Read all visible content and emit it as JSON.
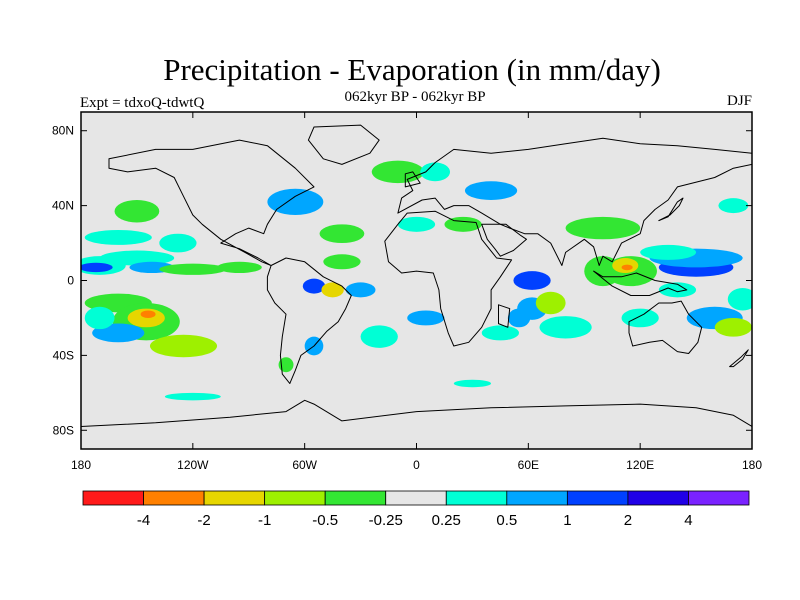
{
  "header": {
    "title": "Precipitation - Evaporation (in mm/day)",
    "subtitle": "062kyr BP - 062kyr BP",
    "left_label": "Expt = tdxoQ-tdwtQ",
    "right_label": "DJF"
  },
  "map": {
    "lon_range": [
      -180,
      180
    ],
    "lat_range": [
      -90,
      90
    ],
    "ocean_fill": "#e6e6e6",
    "lon_ticks": [
      {
        "lon": -180,
        "label": "180"
      },
      {
        "lon": -120,
        "label": "120W"
      },
      {
        "lon": -60,
        "label": "60W"
      },
      {
        "lon": 0,
        "label": "0"
      },
      {
        "lon": 60,
        "label": "60E"
      },
      {
        "lon": 120,
        "label": "120E"
      },
      {
        "lon": 180,
        "label": "180"
      }
    ],
    "lat_ticks": [
      {
        "lat": 80,
        "label": "80N"
      },
      {
        "lat": 40,
        "label": "40N"
      },
      {
        "lat": 0,
        "label": "0"
      },
      {
        "lat": -40,
        "label": "40S"
      },
      {
        "lat": -80,
        "label": "80S"
      }
    ]
  },
  "colorbar": {
    "colors": [
      "#ff1a1a",
      "#ff8000",
      "#e6d600",
      "#9ef000",
      "#33e633",
      "#e6e6e6",
      "#00ffd5",
      "#00a6ff",
      "#0040ff",
      "#2000e6",
      "#7a22ff"
    ],
    "labels": [
      "-4",
      "-2",
      "-1",
      "-0.5",
      "-0.25",
      "0.25",
      "0.5",
      "1",
      "2",
      "4"
    ]
  },
  "blobs": [
    {
      "lon": -170,
      "lat": 8,
      "rx": 14,
      "ry": 5,
      "color": "#00ffd5"
    },
    {
      "lon": -172,
      "lat": 7,
      "rx": 9,
      "ry": 2.5,
      "color": "#0040ff"
    },
    {
      "lon": -150,
      "lat": 12,
      "rx": 20,
      "ry": 4,
      "color": "#00ffd5"
    },
    {
      "lon": -142,
      "lat": 7,
      "rx": 12,
      "ry": 3,
      "color": "#00a6ff"
    },
    {
      "lon": -120,
      "lat": 6,
      "rx": 18,
      "ry": 3,
      "color": "#33e633"
    },
    {
      "lon": -95,
      "lat": 7,
      "rx": 12,
      "ry": 3,
      "color": "#33e633"
    },
    {
      "lon": -160,
      "lat": -12,
      "rx": 18,
      "ry": 5,
      "color": "#33e633"
    },
    {
      "lon": -145,
      "lat": -22,
      "rx": 18,
      "ry": 10,
      "color": "#33e633"
    },
    {
      "lon": -145,
      "lat": -20,
      "rx": 10,
      "ry": 5,
      "color": "#e6d600"
    },
    {
      "lon": -144,
      "lat": -18,
      "rx": 4,
      "ry": 2,
      "color": "#ff8000"
    },
    {
      "lon": -125,
      "lat": -35,
      "rx": 18,
      "ry": 6,
      "color": "#9ef000"
    },
    {
      "lon": -160,
      "lat": -28,
      "rx": 14,
      "ry": 5,
      "color": "#00a6ff"
    },
    {
      "lon": -170,
      "lat": -20,
      "rx": 8,
      "ry": 6,
      "color": "#00ffd5"
    },
    {
      "lon": -150,
      "lat": 37,
      "rx": 12,
      "ry": 6,
      "color": "#33e633"
    },
    {
      "lon": -160,
      "lat": 23,
      "rx": 18,
      "ry": 4,
      "color": "#00ffd5"
    },
    {
      "lon": -128,
      "lat": 20,
      "rx": 10,
      "ry": 5,
      "color": "#00ffd5"
    },
    {
      "lon": -65,
      "lat": 42,
      "rx": 15,
      "ry": 7,
      "color": "#00a6ff"
    },
    {
      "lon": -40,
      "lat": 25,
      "rx": 12,
      "ry": 5,
      "color": "#33e633"
    },
    {
      "lon": -40,
      "lat": 10,
      "rx": 10,
      "ry": 4,
      "color": "#33e633"
    },
    {
      "lon": -30,
      "lat": -5,
      "rx": 8,
      "ry": 4,
      "color": "#00a6ff"
    },
    {
      "lon": -55,
      "lat": -3,
      "rx": 6,
      "ry": 4,
      "color": "#0040ff"
    },
    {
      "lon": -45,
      "lat": -5,
      "rx": 6,
      "ry": 4,
      "color": "#e6d600"
    },
    {
      "lon": -20,
      "lat": -30,
      "rx": 10,
      "ry": 6,
      "color": "#00ffd5"
    },
    {
      "lon": 5,
      "lat": -20,
      "rx": 10,
      "ry": 4,
      "color": "#00a6ff"
    },
    {
      "lon": -10,
      "lat": 58,
      "rx": 14,
      "ry": 6,
      "color": "#33e633"
    },
    {
      "lon": 10,
      "lat": 58,
      "rx": 8,
      "ry": 5,
      "color": "#00ffd5"
    },
    {
      "lon": 40,
      "lat": 48,
      "rx": 14,
      "ry": 5,
      "color": "#00a6ff"
    },
    {
      "lon": 25,
      "lat": 30,
      "rx": 10,
      "ry": 4,
      "color": "#33e633"
    },
    {
      "lon": 0,
      "lat": 30,
      "rx": 10,
      "ry": 4,
      "color": "#00ffd5"
    },
    {
      "lon": 62,
      "lat": 0,
      "rx": 10,
      "ry": 5,
      "color": "#0040ff"
    },
    {
      "lon": 62,
      "lat": -15,
      "rx": 8,
      "ry": 6,
      "color": "#00a6ff"
    },
    {
      "lon": 72,
      "lat": -12,
      "rx": 8,
      "ry": 6,
      "color": "#9ef000"
    },
    {
      "lon": 55,
      "lat": -20,
      "rx": 6,
      "ry": 5,
      "color": "#00a6ff"
    },
    {
      "lon": 45,
      "lat": -28,
      "rx": 10,
      "ry": 4,
      "color": "#00ffd5"
    },
    {
      "lon": 80,
      "lat": -25,
      "rx": 14,
      "ry": 6,
      "color": "#00ffd5"
    },
    {
      "lon": 100,
      "lat": 5,
      "rx": 10,
      "ry": 8,
      "color": "#33e633"
    },
    {
      "lon": 115,
      "lat": 5,
      "rx": 14,
      "ry": 8,
      "color": "#33e633"
    },
    {
      "lon": 112,
      "lat": 8,
      "rx": 7,
      "ry": 4,
      "color": "#e6d600"
    },
    {
      "lon": 113,
      "lat": 7,
      "rx": 3,
      "ry": 1.5,
      "color": "#ff8000"
    },
    {
      "lon": 150,
      "lat": 7,
      "rx": 20,
      "ry": 5,
      "color": "#0040ff"
    },
    {
      "lon": 150,
      "lat": 12,
      "rx": 25,
      "ry": 5,
      "color": "#00a6ff"
    },
    {
      "lon": 135,
      "lat": 15,
      "rx": 15,
      "ry": 4,
      "color": "#00ffd5"
    },
    {
      "lon": 160,
      "lat": -20,
      "rx": 15,
      "ry": 6,
      "color": "#00a6ff"
    },
    {
      "lon": 170,
      "lat": -25,
      "rx": 10,
      "ry": 5,
      "color": "#9ef000"
    },
    {
      "lon": 175,
      "lat": -10,
      "rx": 8,
      "ry": 6,
      "color": "#00ffd5"
    },
    {
      "lon": 140,
      "lat": -5,
      "rx": 10,
      "ry": 4,
      "color": "#00ffd5"
    },
    {
      "lon": 120,
      "lat": -20,
      "rx": 10,
      "ry": 5,
      "color": "#00ffd5"
    },
    {
      "lon": 100,
      "lat": 28,
      "rx": 20,
      "ry": 6,
      "color": "#33e633"
    },
    {
      "lon": -120,
      "lat": -62,
      "rx": 15,
      "ry": 2,
      "color": "#00ffd5"
    },
    {
      "lon": 30,
      "lat": -55,
      "rx": 10,
      "ry": 2,
      "color": "#00ffd5"
    },
    {
      "lon": 170,
      "lat": 40,
      "rx": 8,
      "ry": 4,
      "color": "#00ffd5"
    },
    {
      "lon": -55,
      "lat": -35,
      "rx": 5,
      "ry": 5,
      "color": "#00a6ff"
    },
    {
      "lon": -70,
      "lat": -45,
      "rx": 4,
      "ry": 4,
      "color": "#33e633"
    }
  ],
  "land": [
    {
      "name": "north-america",
      "coords": [
        [
          -165,
          65
        ],
        [
          -140,
          70
        ],
        [
          -120,
          70
        ],
        [
          -95,
          75
        ],
        [
          -80,
          72
        ],
        [
          -65,
          60
        ],
        [
          -55,
          50
        ],
        [
          -65,
          45
        ],
        [
          -75,
          38
        ],
        [
          -80,
          30
        ],
        [
          -82,
          25
        ],
        [
          -90,
          28
        ],
        [
          -97,
          25
        ],
        [
          -105,
          20
        ],
        [
          -95,
          17
        ],
        [
          -85,
          12
        ],
        [
          -78,
          8
        ],
        [
          -83,
          10
        ],
        [
          -92,
          15
        ],
        [
          -105,
          22
        ],
        [
          -115,
          30
        ],
        [
          -120,
          35
        ],
        [
          -125,
          45
        ],
        [
          -130,
          55
        ],
        [
          -140,
          60
        ],
        [
          -155,
          58
        ],
        [
          -165,
          60
        ]
      ]
    },
    {
      "name": "greenland",
      "coords": [
        [
          -55,
          82
        ],
        [
          -30,
          83
        ],
        [
          -20,
          75
        ],
        [
          -25,
          68
        ],
        [
          -40,
          62
        ],
        [
          -50,
          65
        ],
        [
          -58,
          75
        ]
      ]
    },
    {
      "name": "south-america",
      "coords": [
        [
          -78,
          8
        ],
        [
          -70,
          12
        ],
        [
          -60,
          10
        ],
        [
          -50,
          2
        ],
        [
          -40,
          -3
        ],
        [
          -35,
          -8
        ],
        [
          -38,
          -15
        ],
        [
          -42,
          -22
        ],
        [
          -48,
          -27
        ],
        [
          -55,
          -35
        ],
        [
          -62,
          -40
        ],
        [
          -65,
          -48
        ],
        [
          -68,
          -55
        ],
        [
          -72,
          -50
        ],
        [
          -73,
          -40
        ],
        [
          -72,
          -30
        ],
        [
          -70,
          -18
        ],
        [
          -76,
          -12
        ],
        [
          -80,
          -5
        ],
        [
          -80,
          2
        ]
      ]
    },
    {
      "name": "eurasia",
      "coords": [
        [
          -10,
          36
        ],
        [
          -8,
          44
        ],
        [
          -2,
          48
        ],
        [
          -5,
          54
        ],
        [
          5,
          58
        ],
        [
          10,
          63
        ],
        [
          20,
          70
        ],
        [
          40,
          68
        ],
        [
          60,
          70
        ],
        [
          80,
          73
        ],
        [
          100,
          76
        ],
        [
          120,
          73
        ],
        [
          140,
          72
        ],
        [
          160,
          70
        ],
        [
          180,
          68
        ],
        [
          180,
          62
        ],
        [
          170,
          60
        ],
        [
          160,
          55
        ],
        [
          140,
          50
        ],
        [
          135,
          43
        ],
        [
          128,
          38
        ],
        [
          122,
          32
        ],
        [
          120,
          25
        ],
        [
          110,
          20
        ],
        [
          105,
          10
        ],
        [
          100,
          13
        ],
        [
          98,
          8
        ],
        [
          95,
          18
        ],
        [
          90,
          22
        ],
        [
          80,
          15
        ],
        [
          78,
          8
        ],
        [
          72,
          20
        ],
        [
          65,
          25
        ],
        [
          58,
          25
        ],
        [
          50,
          28
        ],
        [
          45,
          30
        ],
        [
          35,
          36
        ],
        [
          28,
          40
        ],
        [
          20,
          40
        ],
        [
          15,
          38
        ],
        [
          10,
          44
        ],
        [
          3,
          43
        ]
      ]
    },
    {
      "name": "africa",
      "coords": [
        [
          -17,
          21
        ],
        [
          -10,
          30
        ],
        [
          -5,
          36
        ],
        [
          10,
          37
        ],
        [
          20,
          32
        ],
        [
          32,
          31
        ],
        [
          35,
          22
        ],
        [
          43,
          12
        ],
        [
          51,
          11
        ],
        [
          45,
          2
        ],
        [
          40,
          -5
        ],
        [
          40,
          -15
        ],
        [
          35,
          -25
        ],
        [
          28,
          -33
        ],
        [
          20,
          -35
        ],
        [
          17,
          -28
        ],
        [
          13,
          -15
        ],
        [
          12,
          -5
        ],
        [
          9,
          4
        ],
        [
          0,
          5
        ],
        [
          -8,
          4
        ],
        [
          -15,
          10
        ]
      ]
    },
    {
      "name": "arabia",
      "coords": [
        [
          35,
          30
        ],
        [
          48,
          30
        ],
        [
          56,
          24
        ],
        [
          59,
          22
        ],
        [
          52,
          16
        ],
        [
          45,
          13
        ],
        [
          42,
          17
        ],
        [
          38,
          22
        ]
      ]
    },
    {
      "name": "madagascar",
      "coords": [
        [
          44,
          -13
        ],
        [
          50,
          -15
        ],
        [
          49,
          -25
        ],
        [
          44,
          -23
        ]
      ]
    },
    {
      "name": "australia",
      "coords": [
        [
          114,
          -22
        ],
        [
          122,
          -18
        ],
        [
          130,
          -12
        ],
        [
          137,
          -12
        ],
        [
          142,
          -11
        ],
        [
          146,
          -18
        ],
        [
          153,
          -25
        ],
        [
          151,
          -33
        ],
        [
          146,
          -39
        ],
        [
          140,
          -38
        ],
        [
          132,
          -32
        ],
        [
          125,
          -33
        ],
        [
          116,
          -35
        ],
        [
          114,
          -28
        ]
      ]
    },
    {
      "name": "antarctica",
      "coords": [
        [
          -180,
          -78
        ],
        [
          -140,
          -76
        ],
        [
          -100,
          -73
        ],
        [
          -70,
          -70
        ],
        [
          -60,
          -64
        ],
        [
          -55,
          -66
        ],
        [
          -40,
          -75
        ],
        [
          0,
          -70
        ],
        [
          40,
          -68
        ],
        [
          80,
          -67
        ],
        [
          120,
          -66
        ],
        [
          150,
          -68
        ],
        [
          170,
          -72
        ],
        [
          180,
          -78
        ],
        [
          180,
          -90
        ],
        [
          -180,
          -90
        ]
      ]
    },
    {
      "name": "indonesia",
      "coords": [
        [
          95,
          5
        ],
        [
          105,
          -3
        ],
        [
          115,
          -8
        ],
        [
          125,
          -8
        ],
        [
          135,
          -4
        ],
        [
          140,
          -6
        ],
        [
          145,
          -5
        ],
        [
          140,
          -2
        ],
        [
          128,
          0
        ],
        [
          118,
          4
        ],
        [
          110,
          2
        ],
        [
          100,
          2
        ]
      ]
    },
    {
      "name": "japan",
      "coords": [
        [
          130,
          32
        ],
        [
          136,
          35
        ],
        [
          141,
          40
        ],
        [
          143,
          44
        ],
        [
          140,
          42
        ],
        [
          135,
          34
        ]
      ]
    },
    {
      "name": "uk",
      "coords": [
        [
          -6,
          50
        ],
        [
          2,
          52
        ],
        [
          -2,
          58
        ],
        [
          -6,
          57
        ]
      ]
    },
    {
      "name": "new-zealand",
      "coords": [
        [
          168,
          -46
        ],
        [
          174,
          -41
        ],
        [
          178,
          -37
        ],
        [
          175,
          -42
        ],
        [
          170,
          -46
        ]
      ]
    }
  ]
}
